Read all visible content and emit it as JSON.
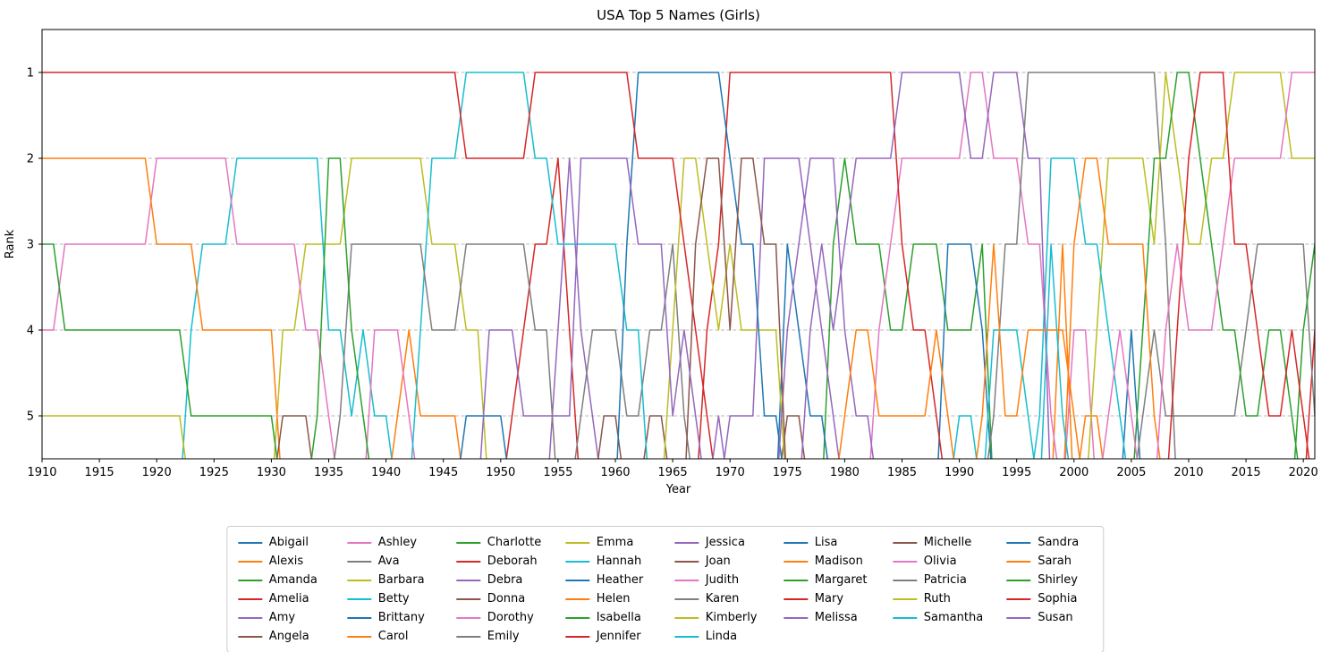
{
  "chart_data": {
    "type": "line",
    "subtype": "bump-rank-chart",
    "title": "USA Top 5 Names (Girls)",
    "xlabel": "Year",
    "ylabel": "Rank",
    "x_ticks": [
      1910,
      1915,
      1920,
      1925,
      1930,
      1935,
      1940,
      1945,
      1950,
      1955,
      1960,
      1965,
      1970,
      1975,
      1980,
      1985,
      1990,
      1995,
      2000,
      2005,
      2010,
      2015,
      2020
    ],
    "y_ticks": [
      1,
      2,
      3,
      4,
      5
    ],
    "xlim": [
      1910,
      2021
    ],
    "ylim": [
      0.5,
      5.5
    ],
    "y_axis_inverted": true,
    "grid": "horizontal-dashed",
    "legend_position": "bottom-center",
    "legend_ncols": 8,
    "out_rank": 6,
    "palette": [
      "#1f77b4",
      "#ff7f0e",
      "#2ca02c",
      "#d62728",
      "#9467bd",
      "#8c564b",
      "#e377c2",
      "#7f7f7f",
      "#bcbd22",
      "#17becf"
    ],
    "names": [
      "Abigail",
      "Alexis",
      "Amanda",
      "Amelia",
      "Amy",
      "Angela",
      "Ashley",
      "Ava",
      "Barbara",
      "Betty",
      "Brittany",
      "Carol",
      "Charlotte",
      "Deborah",
      "Debra",
      "Donna",
      "Dorothy",
      "Emily",
      "Emma",
      "Hannah",
      "Heather",
      "Helen",
      "Isabella",
      "Jennifer",
      "Jessica",
      "Joan",
      "Judith",
      "Karen",
      "Kimberly",
      "Linda",
      "Lisa",
      "Madison",
      "Margaret",
      "Mary",
      "Melissa",
      "Michelle",
      "Olivia",
      "Patricia",
      "Ruth",
      "Samantha",
      "Sandra",
      "Sarah",
      "Shirley",
      "Sophia",
      "Susan"
    ],
    "start_year": 1910,
    "end_year": 2021,
    "rankings": [
      [
        "Mary",
        "Helen",
        "Margaret",
        "Dorothy",
        "Ruth"
      ],
      [
        "Mary",
        "Helen",
        "Margaret",
        "Dorothy",
        "Ruth"
      ],
      [
        "Mary",
        "Helen",
        "Dorothy",
        "Margaret",
        "Ruth"
      ],
      [
        "Mary",
        "Helen",
        "Dorothy",
        "Margaret",
        "Ruth"
      ],
      [
        "Mary",
        "Helen",
        "Dorothy",
        "Margaret",
        "Ruth"
      ],
      [
        "Mary",
        "Helen",
        "Dorothy",
        "Margaret",
        "Ruth"
      ],
      [
        "Mary",
        "Helen",
        "Dorothy",
        "Margaret",
        "Ruth"
      ],
      [
        "Mary",
        "Helen",
        "Dorothy",
        "Margaret",
        "Ruth"
      ],
      [
        "Mary",
        "Helen",
        "Dorothy",
        "Margaret",
        "Ruth"
      ],
      [
        "Mary",
        "Helen",
        "Dorothy",
        "Margaret",
        "Ruth"
      ],
      [
        "Mary",
        "Dorothy",
        "Helen",
        "Margaret",
        "Ruth"
      ],
      [
        "Mary",
        "Dorothy",
        "Helen",
        "Margaret",
        "Ruth"
      ],
      [
        "Mary",
        "Dorothy",
        "Helen",
        "Margaret",
        "Ruth"
      ],
      [
        "Mary",
        "Dorothy",
        "Helen",
        "Betty",
        "Margaret"
      ],
      [
        "Mary",
        "Dorothy",
        "Betty",
        "Helen",
        "Margaret"
      ],
      [
        "Mary",
        "Dorothy",
        "Betty",
        "Helen",
        "Margaret"
      ],
      [
        "Mary",
        "Dorothy",
        "Betty",
        "Helen",
        "Margaret"
      ],
      [
        "Mary",
        "Betty",
        "Dorothy",
        "Helen",
        "Margaret"
      ],
      [
        "Mary",
        "Betty",
        "Dorothy",
        "Helen",
        "Margaret"
      ],
      [
        "Mary",
        "Betty",
        "Dorothy",
        "Helen",
        "Margaret"
      ],
      [
        "Mary",
        "Betty",
        "Dorothy",
        "Helen",
        "Margaret"
      ],
      [
        "Mary",
        "Betty",
        "Dorothy",
        "Barbara",
        "Joan"
      ],
      [
        "Mary",
        "Betty",
        "Dorothy",
        "Barbara",
        "Joan"
      ],
      [
        "Mary",
        "Betty",
        "Barbara",
        "Dorothy",
        "Joan"
      ],
      [
        "Mary",
        "Betty",
        "Barbara",
        "Dorothy",
        "Shirley"
      ],
      [
        "Mary",
        "Shirley",
        "Barbara",
        "Betty",
        "Dorothy"
      ],
      [
        "Mary",
        "Shirley",
        "Barbara",
        "Betty",
        "Patricia"
      ],
      [
        "Mary",
        "Barbara",
        "Patricia",
        "Shirley",
        "Betty"
      ],
      [
        "Mary",
        "Barbara",
        "Patricia",
        "Betty",
        "Shirley"
      ],
      [
        "Mary",
        "Barbara",
        "Patricia",
        "Judith",
        "Betty"
      ],
      [
        "Mary",
        "Barbara",
        "Patricia",
        "Judith",
        "Betty"
      ],
      [
        "Mary",
        "Barbara",
        "Patricia",
        "Judith",
        "Carol"
      ],
      [
        "Mary",
        "Barbara",
        "Patricia",
        "Carol",
        "Judith"
      ],
      [
        "Mary",
        "Barbara",
        "Patricia",
        "Linda",
        "Carol"
      ],
      [
        "Mary",
        "Linda",
        "Barbara",
        "Patricia",
        "Carol"
      ],
      [
        "Mary",
        "Linda",
        "Barbara",
        "Patricia",
        "Carol"
      ],
      [
        "Mary",
        "Linda",
        "Barbara",
        "Patricia",
        "Carol"
      ],
      [
        "Linda",
        "Mary",
        "Patricia",
        "Barbara",
        "Sandra"
      ],
      [
        "Linda",
        "Mary",
        "Patricia",
        "Barbara",
        "Sandra"
      ],
      [
        "Linda",
        "Mary",
        "Patricia",
        "Susan",
        "Sandra"
      ],
      [
        "Linda",
        "Mary",
        "Patricia",
        "Susan",
        "Sandra"
      ],
      [
        "Linda",
        "Mary",
        "Patricia",
        "Susan",
        "Deborah"
      ],
      [
        "Linda",
        "Mary",
        "Patricia",
        "Deborah",
        "Susan"
      ],
      [
        "Mary",
        "Linda",
        "Deborah",
        "Patricia",
        "Susan"
      ],
      [
        "Mary",
        "Linda",
        "Deborah",
        "Patricia",
        "Susan"
      ],
      [
        "Mary",
        "Deborah",
        "Linda",
        "Debra",
        "Susan"
      ],
      [
        "Mary",
        "Debra",
        "Linda",
        "Deborah",
        "Susan"
      ],
      [
        "Mary",
        "Susan",
        "Linda",
        "Debra",
        "Karen"
      ],
      [
        "Mary",
        "Susan",
        "Linda",
        "Karen",
        "Debra"
      ],
      [
        "Mary",
        "Susan",
        "Linda",
        "Karen",
        "Donna"
      ],
      [
        "Mary",
        "Susan",
        "Linda",
        "Karen",
        "Donna"
      ],
      [
        "Mary",
        "Susan",
        "Lisa",
        "Linda",
        "Karen"
      ],
      [
        "Lisa",
        "Mary",
        "Susan",
        "Linda",
        "Karen"
      ],
      [
        "Lisa",
        "Mary",
        "Susan",
        "Karen",
        "Donna"
      ],
      [
        "Lisa",
        "Mary",
        "Susan",
        "Karen",
        "Donna"
      ],
      [
        "Lisa",
        "Mary",
        "Karen",
        "Kimberly",
        "Susan"
      ],
      [
        "Lisa",
        "Kimberly",
        "Mary",
        "Susan",
        "Karen"
      ],
      [
        "Lisa",
        "Kimberly",
        "Michelle",
        "Mary",
        "Susan"
      ],
      [
        "Lisa",
        "Michelle",
        "Kimberly",
        "Jennifer",
        "Mary"
      ],
      [
        "Lisa",
        "Michelle",
        "Jennifer",
        "Kimberly",
        "Melissa"
      ],
      [
        "Jennifer",
        "Lisa",
        "Kimberly",
        "Michelle",
        "Amy"
      ],
      [
        "Jennifer",
        "Michelle",
        "Lisa",
        "Kimberly",
        "Amy"
      ],
      [
        "Jennifer",
        "Michelle",
        "Lisa",
        "Kimberly",
        "Amy"
      ],
      [
        "Jennifer",
        "Amy",
        "Michelle",
        "Kimberly",
        "Lisa"
      ],
      [
        "Jennifer",
        "Amy",
        "Michelle",
        "Kimberly",
        "Lisa"
      ],
      [
        "Jennifer",
        "Amy",
        "Heather",
        "Melissa",
        "Angela"
      ],
      [
        "Jennifer",
        "Amy",
        "Melissa",
        "Heather",
        "Angela"
      ],
      [
        "Jennifer",
        "Melissa",
        "Amy",
        "Jessica",
        "Heather"
      ],
      [
        "Jennifer",
        "Melissa",
        "Jessica",
        "Amy",
        "Heather"
      ],
      [
        "Jennifer",
        "Melissa",
        "Amanda",
        "Jessica",
        "Amy"
      ],
      [
        "Jennifer",
        "Amanda",
        "Jessica",
        "Melissa",
        "Sarah"
      ],
      [
        "Jennifer",
        "Jessica",
        "Amanda",
        "Sarah",
        "Melissa"
      ],
      [
        "Jennifer",
        "Jessica",
        "Amanda",
        "Sarah",
        "Melissa"
      ],
      [
        "Jennifer",
        "Jessica",
        "Amanda",
        "Ashley",
        "Sarah"
      ],
      [
        "Jennifer",
        "Jessica",
        "Ashley",
        "Amanda",
        "Sarah"
      ],
      [
        "Jessica",
        "Ashley",
        "Jennifer",
        "Amanda",
        "Sarah"
      ],
      [
        "Jessica",
        "Ashley",
        "Amanda",
        "Jennifer",
        "Sarah"
      ],
      [
        "Jessica",
        "Ashley",
        "Amanda",
        "Jennifer",
        "Sarah"
      ],
      [
        "Jessica",
        "Ashley",
        "Amanda",
        "Sarah",
        "Jennifer"
      ],
      [
        "Jessica",
        "Ashley",
        "Brittany",
        "Amanda",
        "Sarah"
      ],
      [
        "Jessica",
        "Ashley",
        "Brittany",
        "Amanda",
        "Samantha"
      ],
      [
        "Ashley",
        "Jessica",
        "Brittany",
        "Amanda",
        "Samantha"
      ],
      [
        "Ashley",
        "Jessica",
        "Amanda",
        "Brittany",
        "Sarah"
      ],
      [
        "Jessica",
        "Ashley",
        "Sarah",
        "Samantha",
        "Emily"
      ],
      [
        "Jessica",
        "Ashley",
        "Emily",
        "Samantha",
        "Sarah"
      ],
      [
        "Jessica",
        "Ashley",
        "Emily",
        "Samantha",
        "Sarah"
      ],
      [
        "Emily",
        "Jessica",
        "Ashley",
        "Sarah",
        "Samantha"
      ],
      [
        "Emily",
        "Jessica",
        "Ashley",
        "Sarah",
        "Hannah"
      ],
      [
        "Emily",
        "Hannah",
        "Samantha",
        "Sarah",
        "Ashley"
      ],
      [
        "Emily",
        "Hannah",
        "Alexis",
        "Sarah",
        "Samantha"
      ],
      [
        "Emily",
        "Hannah",
        "Madison",
        "Ashley",
        "Sarah"
      ],
      [
        "Emily",
        "Madison",
        "Hannah",
        "Ashley",
        "Alexis"
      ],
      [
        "Emily",
        "Madison",
        "Hannah",
        "Emma",
        "Alexis"
      ],
      [
        "Emily",
        "Emma",
        "Madison",
        "Hannah",
        "Olivia"
      ],
      [
        "Emily",
        "Emma",
        "Madison",
        "Olivia",
        "Hannah"
      ],
      [
        "Emily",
        "Emma",
        "Madison",
        "Abigail",
        "Olivia"
      ],
      [
        "Emily",
        "Emma",
        "Madison",
        "Isabella",
        "Ava"
      ],
      [
        "Emily",
        "Isabella",
        "Emma",
        "Ava",
        "Madison"
      ],
      [
        "Emma",
        "Isabella",
        "Emily",
        "Olivia",
        "Ava"
      ],
      [
        "Isabella",
        "Emma",
        "Olivia",
        "Sophia",
        "Ava"
      ],
      [
        "Isabella",
        "Sophia",
        "Emma",
        "Olivia",
        "Ava"
      ],
      [
        "Sophia",
        "Isabella",
        "Emma",
        "Olivia",
        "Ava"
      ],
      [
        "Sophia",
        "Emma",
        "Isabella",
        "Olivia",
        "Ava"
      ],
      [
        "Sophia",
        "Emma",
        "Olivia",
        "Isabella",
        "Ava"
      ],
      [
        "Emma",
        "Olivia",
        "Sophia",
        "Isabella",
        "Ava"
      ],
      [
        "Emma",
        "Olivia",
        "Sophia",
        "Ava",
        "Isabella"
      ],
      [
        "Emma",
        "Olivia",
        "Ava",
        "Sophia",
        "Isabella"
      ],
      [
        "Emma",
        "Olivia",
        "Ava",
        "Isabella",
        "Sophia"
      ],
      [
        "Emma",
        "Olivia",
        "Ava",
        "Isabella",
        "Sophia"
      ],
      [
        "Olivia",
        "Emma",
        "Ava",
        "Sophia",
        "Isabella"
      ],
      [
        "Olivia",
        "Emma",
        "Ava",
        "Charlotte",
        "Sophia"
      ],
      [
        "Olivia",
        "Emma",
        "Charlotte",
        "Amelia",
        "Ava"
      ]
    ]
  }
}
